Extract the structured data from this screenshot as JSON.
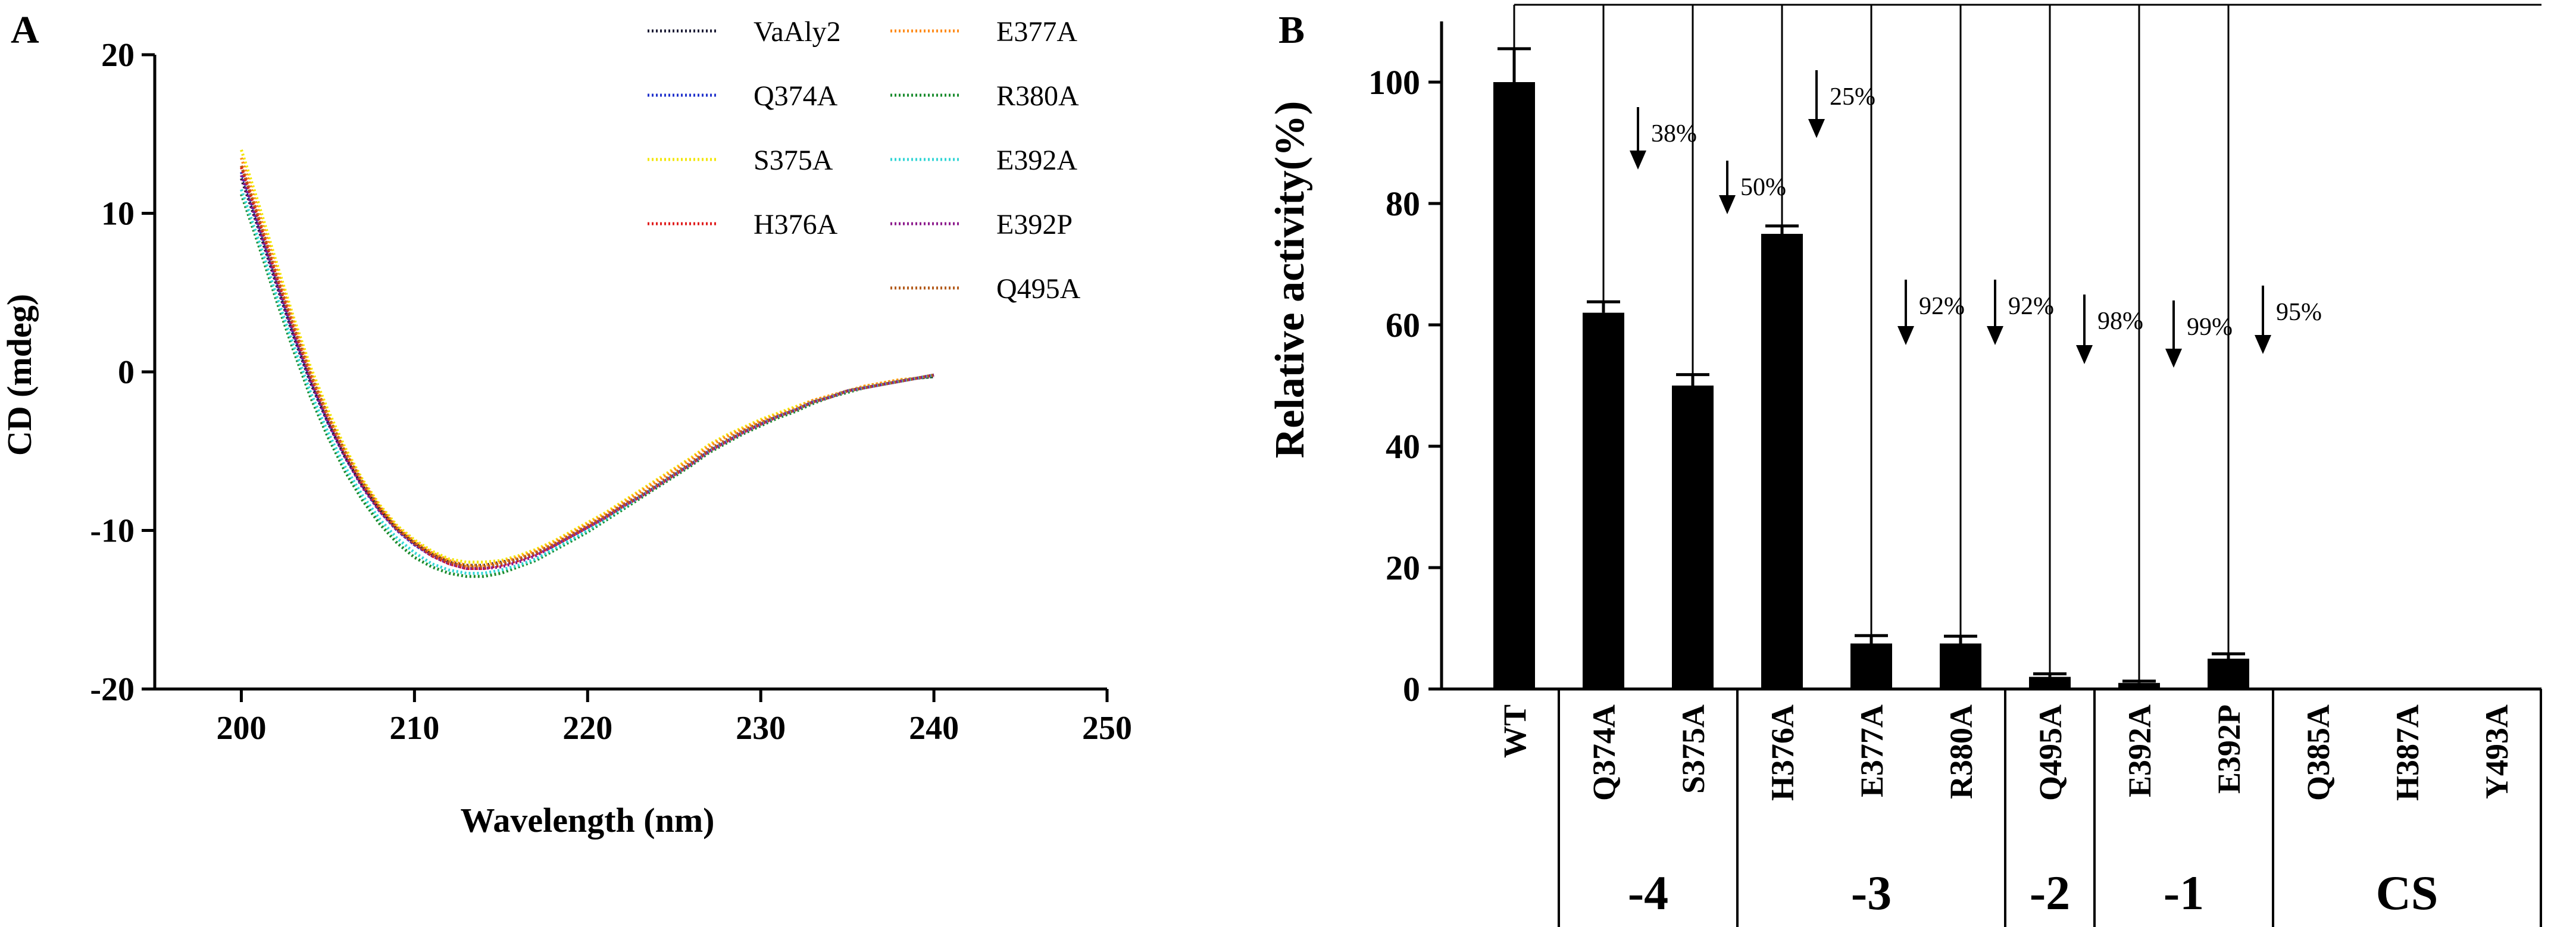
{
  "chart_data": [
    {
      "panel_label": "A",
      "type": "line",
      "xlabel": "Wavelength (nm)",
      "ylabel": "CD (mdeg)",
      "xlim": [
        195,
        250
      ],
      "ylim": [
        -20,
        20
      ],
      "x_ticks": [
        "200",
        "210",
        "220",
        "230",
        "240",
        "250"
      ],
      "y_ticks": [
        "20",
        "10",
        "0",
        "-10",
        "-20"
      ],
      "grid": false,
      "legend_position": "top-right",
      "series": [
        {
          "name": "VaAly2",
          "color": "#1a1a33",
          "x": [
            200,
            201,
            202,
            203,
            204,
            205,
            206,
            207,
            208,
            209,
            210,
            211,
            212,
            213,
            214,
            215,
            216,
            217,
            218,
            219,
            220,
            221,
            222,
            223,
            224,
            225,
            226,
            227,
            228,
            229,
            230,
            231,
            232,
            233,
            234,
            235,
            236,
            237,
            238,
            239,
            240
          ],
          "y": [
            12.2,
            9.0,
            5.6,
            2.3,
            -0.7,
            -3.2,
            -5.4,
            -7.2,
            -8.7,
            -9.9,
            -10.8,
            -11.5,
            -12.0,
            -12.2,
            -12.2,
            -12.0,
            -11.8,
            -11.4,
            -10.9,
            -10.4,
            -9.8,
            -9.2,
            -8.5,
            -7.9,
            -7.2,
            -6.5,
            -5.8,
            -5.0,
            -4.4,
            -3.8,
            -3.3,
            -2.8,
            -2.4,
            -1.9,
            -1.6,
            -1.2,
            -1.0,
            -0.8,
            -0.6,
            -0.4,
            -0.3
          ]
        },
        {
          "name": "Q374A",
          "color": "#2233cc",
          "x": [
            200,
            201,
            202,
            203,
            204,
            205,
            206,
            207,
            208,
            209,
            210,
            211,
            212,
            213,
            214,
            215,
            216,
            217,
            218,
            219,
            220,
            221,
            222,
            223,
            224,
            225,
            226,
            227,
            228,
            229,
            230,
            231,
            232,
            233,
            234,
            235,
            236,
            237,
            238,
            239,
            240
          ],
          "y": [
            12.6,
            9.3,
            5.9,
            2.5,
            -0.5,
            -3.1,
            -5.3,
            -7.2,
            -8.8,
            -10.0,
            -10.9,
            -11.6,
            -12.1,
            -12.4,
            -12.4,
            -12.2,
            -11.9,
            -11.5,
            -11.0,
            -10.4,
            -9.8,
            -9.2,
            -8.5,
            -7.9,
            -7.2,
            -6.5,
            -5.8,
            -5.0,
            -4.4,
            -3.8,
            -3.3,
            -2.8,
            -2.4,
            -1.9,
            -1.6,
            -1.2,
            -1.0,
            -0.8,
            -0.6,
            -0.4,
            -0.2
          ]
        },
        {
          "name": "S375A",
          "color": "#f2e600",
          "x": [
            200,
            201,
            202,
            203,
            204,
            205,
            206,
            207,
            208,
            209,
            210,
            211,
            212,
            213,
            214,
            215,
            216,
            217,
            218,
            219,
            220,
            221,
            222,
            223,
            224,
            225,
            226,
            227,
            228,
            229,
            230,
            231,
            232,
            233,
            234,
            235,
            236,
            237,
            238,
            239,
            240
          ],
          "y": [
            14.0,
            10.6,
            7.0,
            3.5,
            0.3,
            -2.4,
            -4.8,
            -6.8,
            -8.4,
            -9.7,
            -10.6,
            -11.3,
            -11.8,
            -12.0,
            -12.0,
            -11.9,
            -11.6,
            -11.2,
            -10.7,
            -10.1,
            -9.5,
            -8.9,
            -8.2,
            -7.5,
            -6.8,
            -6.1,
            -5.4,
            -4.6,
            -4.0,
            -3.5,
            -3.0,
            -2.6,
            -2.2,
            -1.8,
            -1.5,
            -1.2,
            -0.9,
            -0.7,
            -0.5,
            -0.4,
            -0.2
          ]
        },
        {
          "name": "H376A",
          "color": "#e01b1b",
          "x": [
            200,
            201,
            202,
            203,
            204,
            205,
            206,
            207,
            208,
            209,
            210,
            211,
            212,
            213,
            214,
            215,
            216,
            217,
            218,
            219,
            220,
            221,
            222,
            223,
            224,
            225,
            226,
            227,
            228,
            229,
            230,
            231,
            232,
            233,
            234,
            235,
            236,
            237,
            238,
            239,
            240
          ],
          "y": [
            12.9,
            9.6,
            6.1,
            2.8,
            -0.3,
            -2.9,
            -5.2,
            -7.1,
            -8.7,
            -9.9,
            -10.8,
            -11.6,
            -12.1,
            -12.4,
            -12.4,
            -12.2,
            -11.9,
            -11.5,
            -11.0,
            -10.4,
            -9.8,
            -9.2,
            -8.5,
            -7.9,
            -7.2,
            -6.5,
            -5.8,
            -5.0,
            -4.4,
            -3.8,
            -3.3,
            -2.8,
            -2.4,
            -1.9,
            -1.6,
            -1.2,
            -1.0,
            -0.8,
            -0.6,
            -0.4,
            -0.2
          ]
        },
        {
          "name": "E377A",
          "color": "#ff8c1a",
          "x": [
            200,
            201,
            202,
            203,
            204,
            205,
            206,
            207,
            208,
            209,
            210,
            211,
            212,
            213,
            214,
            215,
            216,
            217,
            218,
            219,
            220,
            221,
            222,
            223,
            224,
            225,
            226,
            227,
            228,
            229,
            230,
            231,
            232,
            233,
            234,
            235,
            236,
            237,
            238,
            239,
            240
          ],
          "y": [
            13.5,
            10.1,
            6.6,
            3.2,
            0.0,
            -2.7,
            -5.0,
            -6.9,
            -8.5,
            -9.8,
            -10.7,
            -11.4,
            -11.9,
            -12.2,
            -12.2,
            -12.0,
            -11.7,
            -11.3,
            -10.8,
            -10.2,
            -9.6,
            -9.0,
            -8.3,
            -7.6,
            -6.9,
            -6.2,
            -5.5,
            -4.7,
            -4.1,
            -3.6,
            -3.1,
            -2.7,
            -2.3,
            -1.8,
            -1.5,
            -1.2,
            -0.9,
            -0.7,
            -0.5,
            -0.4,
            -0.2
          ]
        },
        {
          "name": "R380A",
          "color": "#1a8c2e",
          "x": [
            200,
            201,
            202,
            203,
            204,
            205,
            206,
            207,
            208,
            209,
            210,
            211,
            212,
            213,
            214,
            215,
            216,
            217,
            218,
            219,
            220,
            221,
            222,
            223,
            224,
            225,
            226,
            227,
            228,
            229,
            230,
            231,
            232,
            233,
            234,
            235,
            236,
            237,
            238,
            239,
            240
          ],
          "y": [
            11.2,
            8.0,
            4.6,
            1.4,
            -1.6,
            -4.1,
            -6.3,
            -8.1,
            -9.6,
            -10.8,
            -11.7,
            -12.3,
            -12.7,
            -12.9,
            -12.9,
            -12.7,
            -12.3,
            -11.9,
            -11.3,
            -10.7,
            -10.1,
            -9.4,
            -8.7,
            -8.0,
            -7.3,
            -6.6,
            -5.9,
            -5.1,
            -4.5,
            -3.9,
            -3.4,
            -2.9,
            -2.5,
            -2.0,
            -1.6,
            -1.3,
            -1.0,
            -0.8,
            -0.6,
            -0.4,
            -0.3
          ]
        },
        {
          "name": "E392A",
          "color": "#33d6d6",
          "x": [
            200,
            201,
            202,
            203,
            204,
            205,
            206,
            207,
            208,
            209,
            210,
            211,
            212,
            213,
            214,
            215,
            216,
            217,
            218,
            219,
            220,
            221,
            222,
            223,
            224,
            225,
            226,
            227,
            228,
            229,
            230,
            231,
            232,
            233,
            234,
            235,
            236,
            237,
            238,
            239,
            240
          ],
          "y": [
            11.5,
            8.3,
            4.9,
            1.7,
            -1.3,
            -3.8,
            -6.0,
            -7.8,
            -9.3,
            -10.5,
            -11.4,
            -12.1,
            -12.5,
            -12.7,
            -12.7,
            -12.5,
            -12.2,
            -11.8,
            -11.2,
            -10.6,
            -10.0,
            -9.3,
            -8.6,
            -7.9,
            -7.2,
            -6.5,
            -5.8,
            -5.0,
            -4.4,
            -3.8,
            -3.3,
            -2.8,
            -2.4,
            -1.9,
            -1.6,
            -1.2,
            -1.0,
            -0.8,
            -0.6,
            -0.4,
            -0.2
          ]
        },
        {
          "name": "E392P",
          "color": "#8c1a8c",
          "x": [
            200,
            201,
            202,
            203,
            204,
            205,
            206,
            207,
            208,
            209,
            210,
            211,
            212,
            213,
            214,
            215,
            216,
            217,
            218,
            219,
            220,
            221,
            222,
            223,
            224,
            225,
            226,
            227,
            228,
            229,
            230,
            231,
            232,
            233,
            234,
            235,
            236,
            237,
            238,
            239,
            240
          ],
          "y": [
            12.4,
            9.1,
            5.7,
            2.4,
            -0.6,
            -3.2,
            -5.4,
            -7.3,
            -8.8,
            -10.0,
            -10.9,
            -11.6,
            -12.1,
            -12.4,
            -12.4,
            -12.3,
            -12.0,
            -11.6,
            -11.0,
            -10.4,
            -9.8,
            -9.2,
            -8.5,
            -7.9,
            -7.2,
            -6.5,
            -5.8,
            -5.0,
            -4.4,
            -3.8,
            -3.3,
            -2.8,
            -2.4,
            -1.9,
            -1.6,
            -1.2,
            -1.0,
            -0.8,
            -0.6,
            -0.4,
            -0.2
          ]
        },
        {
          "name": "Q495A",
          "color": "#b35a1a",
          "x": [
            200,
            201,
            202,
            203,
            204,
            205,
            206,
            207,
            208,
            209,
            210,
            211,
            212,
            213,
            214,
            215,
            216,
            217,
            218,
            219,
            220,
            221,
            222,
            223,
            224,
            225,
            226,
            227,
            228,
            229,
            230,
            231,
            232,
            233,
            234,
            235,
            236,
            237,
            238,
            239,
            240
          ],
          "y": [
            13.0,
            9.7,
            6.2,
            2.9,
            -0.2,
            -2.8,
            -5.1,
            -7.0,
            -8.6,
            -9.9,
            -10.8,
            -11.5,
            -12.0,
            -12.3,
            -12.3,
            -12.1,
            -11.8,
            -11.4,
            -10.9,
            -10.3,
            -9.7,
            -9.1,
            -8.4,
            -7.8,
            -7.1,
            -6.4,
            -5.7,
            -4.9,
            -4.3,
            -3.7,
            -3.2,
            -2.8,
            -2.4,
            -1.9,
            -1.6,
            -1.2,
            -1.0,
            -0.8,
            -0.6,
            -0.4,
            -0.2
          ]
        }
      ]
    },
    {
      "panel_label": "B",
      "type": "bar",
      "ylabel": "Relative activity(%)",
      "ylim": [
        0,
        110
      ],
      "y_ticks": [
        "0",
        "20",
        "40",
        "60",
        "80",
        "100"
      ],
      "grid": false,
      "bar_color": "#000000",
      "categories": [
        "WT",
        "Q374A",
        "S375A",
        "H376A",
        "E377A",
        "R380A",
        "Q495A",
        "E392A",
        "E392P",
        "Q385A",
        "H387A",
        "Y493A"
      ],
      "values": [
        100,
        62,
        50,
        75,
        7.5,
        7.5,
        2,
        1,
        5,
        0,
        0,
        0
      ],
      "errors": [
        5.5,
        1.8,
        1.8,
        1.3,
        1.3,
        1.2,
        0.5,
        0.3,
        0.8,
        0,
        0,
        0
      ],
      "annotations": [
        {
          "category": "Q374A",
          "text": "38%"
        },
        {
          "category": "S375A",
          "text": "50%"
        },
        {
          "category": "H376A",
          "text": "25%"
        },
        {
          "category": "E377A",
          "text": "92%"
        },
        {
          "category": "R380A",
          "text": "92%"
        },
        {
          "category": "Q495A",
          "text": "98%"
        },
        {
          "category": "E392A",
          "text": "99%"
        },
        {
          "category": "E392P",
          "text": "95%"
        }
      ],
      "groups": [
        {
          "label": "-4",
          "members": [
            "Q374A",
            "S375A"
          ]
        },
        {
          "label": "-3",
          "members": [
            "H376A",
            "E377A",
            "R380A"
          ]
        },
        {
          "label": "-2",
          "members": [
            "Q495A"
          ]
        },
        {
          "label": "-1",
          "members": [
            "E392A",
            "E392P"
          ]
        },
        {
          "label": "CS",
          "members": [
            "Q385A",
            "H387A",
            "Y493A"
          ]
        }
      ]
    }
  ]
}
